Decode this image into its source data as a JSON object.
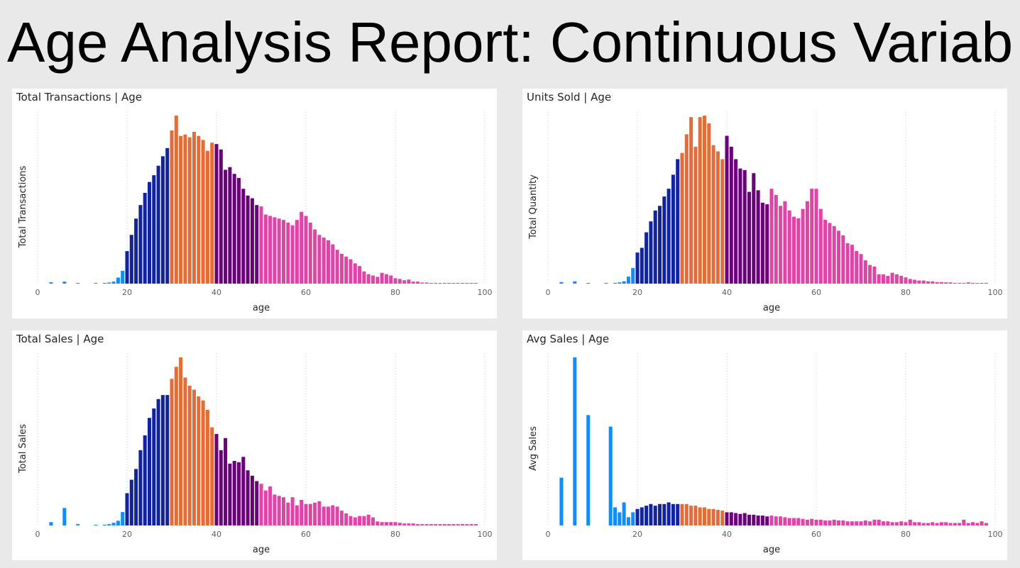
{
  "report_title": "Age Analysis Report: Continuous Variab",
  "colors": {
    "lt20": "#118dff",
    "age20_29": "#12239e",
    "age30_39": "#e66c37",
    "age40_49": "#6b007b",
    "age50plus": "#e044a7",
    "grid": "#c8c6c4",
    "background": "#e9e9e9"
  },
  "chart_data": [
    {
      "type": "bar",
      "title": "Total Transactions | Age",
      "xlabel": "age",
      "ylabel": "Total Transactions",
      "xlim": [
        0,
        100
      ],
      "x_ticks": [
        "0",
        "20",
        "40",
        "60",
        "80",
        "100"
      ],
      "y_axis_labels_shown": false,
      "grid": "vertical dotted",
      "x": [
        3,
        6,
        9,
        13,
        15,
        16,
        17,
        18,
        19,
        20,
        21,
        22,
        23,
        24,
        25,
        26,
        27,
        28,
        29,
        30,
        31,
        32,
        33,
        34,
        35,
        36,
        37,
        38,
        39,
        40,
        41,
        42,
        43,
        44,
        45,
        46,
        47,
        48,
        49,
        50,
        51,
        52,
        53,
        54,
        55,
        56,
        57,
        58,
        59,
        60,
        61,
        62,
        63,
        64,
        65,
        66,
        67,
        68,
        69,
        70,
        71,
        72,
        73,
        74,
        75,
        76,
        77,
        78,
        79,
        80,
        81,
        82,
        83,
        84,
        85,
        86,
        87,
        88,
        89,
        90,
        91,
        92,
        93,
        94,
        95,
        96,
        97,
        98
      ],
      "values": [
        1.0,
        1.5,
        0.3,
        0.3,
        0.5,
        0.8,
        1.5,
        4.5,
        9.5,
        24,
        36,
        48,
        58,
        67,
        75,
        80,
        87,
        94,
        100,
        113,
        124,
        109,
        110,
        108,
        112,
        109,
        106,
        98,
        104,
        103,
        99,
        84,
        86,
        81,
        78,
        70,
        65,
        63,
        58,
        57,
        51,
        50,
        49,
        48,
        47,
        45,
        43,
        47,
        53,
        50,
        45,
        40,
        36,
        34,
        32,
        29,
        25,
        22,
        20,
        18,
        15,
        13,
        9,
        7,
        6,
        5,
        8,
        7,
        6,
        4,
        3.5,
        2.5,
        3,
        1.5,
        1.5,
        0.8,
        0.8,
        0.5,
        0.5,
        0.3,
        0.3,
        0.3,
        0.3,
        0.2,
        0.2,
        0.2,
        0.2,
        0.2
      ]
    },
    {
      "type": "bar",
      "title": "Units Sold | Age",
      "xlabel": "age",
      "ylabel": "Total Quantity",
      "xlim": [
        0,
        100
      ],
      "x_ticks": [
        "0",
        "20",
        "40",
        "60",
        "80",
        "100"
      ],
      "y_axis_labels_shown": false,
      "grid": "vertical dotted",
      "x": [
        3,
        6,
        9,
        13,
        15,
        16,
        17,
        18,
        19,
        20,
        21,
        22,
        23,
        24,
        25,
        26,
        27,
        28,
        29,
        30,
        31,
        32,
        33,
        34,
        35,
        36,
        37,
        38,
        39,
        40,
        41,
        42,
        43,
        44,
        45,
        46,
        47,
        48,
        49,
        50,
        51,
        52,
        53,
        54,
        55,
        56,
        57,
        58,
        59,
        60,
        61,
        62,
        63,
        64,
        65,
        66,
        67,
        68,
        69,
        70,
        71,
        72,
        73,
        74,
        75,
        76,
        77,
        78,
        79,
        80,
        81,
        82,
        83,
        84,
        85,
        86,
        87,
        88,
        89,
        90,
        91,
        92,
        93,
        94,
        95,
        96,
        97,
        98
      ],
      "values": [
        1.0,
        1.5,
        0.3,
        0.3,
        0.5,
        0.8,
        1.5,
        4.5,
        10,
        20,
        23,
        33,
        40,
        47,
        50,
        56,
        61,
        70,
        80,
        84,
        96,
        107,
        88,
        107,
        108,
        103,
        89,
        85,
        80,
        95,
        88,
        80,
        74,
        73,
        59,
        71,
        60,
        52,
        51,
        61,
        57,
        50,
        53,
        47,
        43,
        42,
        48,
        53,
        61,
        61,
        48,
        41,
        39,
        37,
        34,
        31,
        26,
        25,
        21,
        19,
        15,
        12,
        11,
        6,
        6,
        5,
        7,
        6,
        5,
        4,
        3,
        2.5,
        2,
        2,
        1.5,
        1.5,
        1,
        1,
        0.8,
        0.8,
        0.5,
        0.5,
        0.5,
        0.8,
        0.5,
        0.3,
        0.3,
        0.5
      ]
    },
    {
      "type": "bar",
      "title": "Total Sales | Age",
      "xlabel": "age",
      "ylabel": "Total Sales",
      "xlim": [
        0,
        100
      ],
      "x_ticks": [
        "0",
        "20",
        "40",
        "60",
        "80",
        "100"
      ],
      "y_axis_labels_shown": false,
      "grid": "vertical dotted",
      "x": [
        3,
        6,
        9,
        13,
        15,
        16,
        17,
        18,
        19,
        20,
        21,
        22,
        23,
        24,
        25,
        26,
        27,
        28,
        29,
        30,
        31,
        32,
        33,
        34,
        35,
        36,
        37,
        38,
        39,
        40,
        41,
        42,
        43,
        44,
        45,
        46,
        47,
        48,
        49,
        50,
        51,
        52,
        53,
        54,
        55,
        56,
        57,
        58,
        59,
        60,
        61,
        62,
        63,
        64,
        65,
        66,
        67,
        68,
        69,
        70,
        71,
        72,
        73,
        74,
        75,
        76,
        77,
        78,
        79,
        80,
        81,
        82,
        83,
        84,
        85,
        86,
        87,
        88,
        89,
        90,
        91,
        92,
        93,
        94,
        95,
        96,
        97,
        98
      ],
      "values": [
        2.5,
        13,
        1,
        0.3,
        0.5,
        1,
        2,
        3.5,
        10,
        24,
        34,
        42,
        56,
        67,
        80,
        87,
        94,
        97,
        97,
        109,
        118,
        125,
        110,
        104,
        101,
        96,
        93,
        86,
        73,
        68,
        56,
        65,
        46,
        48,
        47,
        51,
        41,
        37,
        33,
        31,
        26,
        29,
        23,
        22,
        21,
        17,
        21,
        15,
        19,
        16,
        16,
        17,
        18,
        14,
        14,
        15,
        14,
        11,
        9,
        7,
        6,
        7,
        7,
        8,
        6,
        3,
        2.5,
        2.5,
        2.5,
        2.5,
        2,
        1.5,
        1.5,
        1.5,
        1,
        1,
        1,
        1,
        1,
        1,
        1,
        1,
        1,
        1,
        1,
        1,
        1,
        1
      ]
    },
    {
      "type": "bar",
      "title": "Avg Sales | Age",
      "xlabel": "age",
      "ylabel": "Avg Sales",
      "xlim": [
        0,
        100
      ],
      "x_ticks": [
        "0",
        "20",
        "40",
        "60",
        "80",
        "100"
      ],
      "y_axis_labels_shown": false,
      "grid": "vertical dotted",
      "x": [
        3,
        6,
        9,
        14,
        15,
        16,
        17,
        18,
        19,
        20,
        21,
        22,
        23,
        24,
        25,
        26,
        27,
        28,
        29,
        30,
        31,
        32,
        33,
        34,
        35,
        36,
        37,
        38,
        39,
        40,
        41,
        42,
        43,
        44,
        45,
        46,
        47,
        48,
        49,
        50,
        51,
        52,
        53,
        54,
        55,
        56,
        57,
        58,
        59,
        60,
        61,
        62,
        63,
        64,
        65,
        66,
        67,
        68,
        69,
        70,
        71,
        72,
        73,
        74,
        75,
        76,
        77,
        78,
        79,
        80,
        81,
        82,
        83,
        84,
        85,
        86,
        87,
        88,
        89,
        90,
        91,
        92,
        93,
        94,
        95,
        96,
        97,
        98
      ],
      "values": [
        29,
        102,
        67,
        60,
        11,
        8,
        14,
        5,
        8,
        10,
        11,
        12,
        13,
        12,
        13,
        13,
        14,
        13,
        13,
        13,
        13,
        12,
        12,
        11,
        11,
        10,
        10,
        9.5,
        9,
        8,
        8,
        7.5,
        7,
        7.5,
        6.5,
        6.5,
        6,
        6,
        5.5,
        6,
        5.5,
        5.5,
        5,
        4.5,
        4.5,
        4.5,
        4,
        3.5,
        4,
        3.5,
        3.5,
        3,
        3,
        3.5,
        3,
        3,
        2.5,
        2.5,
        2.5,
        2.5,
        3,
        2.5,
        3.5,
        3.5,
        2.5,
        2.5,
        2,
        2,
        2.5,
        2,
        3.5,
        2,
        2,
        1.5,
        1.5,
        2,
        1.5,
        2,
        2,
        1.5,
        1.5,
        1.5,
        3.5,
        1.5,
        2,
        1.5,
        2.5,
        1.5
      ]
    }
  ]
}
